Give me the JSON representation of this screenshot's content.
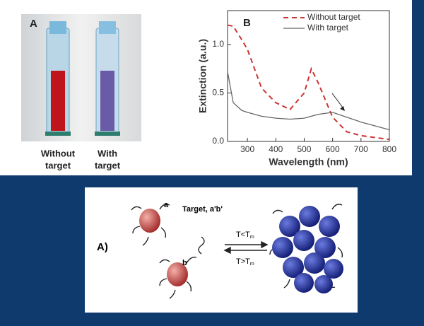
{
  "photo_panel": {
    "label": "A",
    "captions": [
      [
        "Without",
        "target"
      ],
      [
        "With",
        "target"
      ]
    ]
  },
  "chart_data": {
    "type": "line",
    "label": "B",
    "xlabel": "Wavelength (nm)",
    "ylabel": "Extinction (a.u.)",
    "x": [
      230,
      250,
      280,
      300,
      350,
      400,
      450,
      500,
      525,
      550,
      600,
      650,
      700,
      800
    ],
    "series": [
      {
        "name": "Without target",
        "color": "#cc3333",
        "dashed": true,
        "values": [
          1.2,
          1.19,
          1.05,
          0.95,
          0.55,
          0.4,
          0.33,
          0.5,
          0.75,
          0.6,
          0.25,
          0.1,
          0.06,
          0.02
        ]
      },
      {
        "name": "With target",
        "color": "#666666",
        "dashed": false,
        "values": [
          0.72,
          0.4,
          0.32,
          0.3,
          0.26,
          0.24,
          0.23,
          0.24,
          0.26,
          0.28,
          0.3,
          0.25,
          0.2,
          0.12
        ]
      }
    ],
    "xlim": [
      230,
      800
    ],
    "ylim": [
      0,
      1.35
    ],
    "xticks": [
      300,
      400,
      500,
      600,
      700,
      800
    ],
    "yticks": [
      {
        "value": 0,
        "label": "0.0"
      },
      {
        "value": 0.5,
        "label": "0.5"
      },
      {
        "value": 1,
        "label": "1.0"
      }
    ],
    "legend": "top-right"
  },
  "diagram": {
    "panel": "A)",
    "a": "a",
    "b": "b",
    "target": "Target, a'b'",
    "forward": [
      "T<T",
      "m"
    ],
    "backward": [
      "T>T",
      "m"
    ]
  }
}
